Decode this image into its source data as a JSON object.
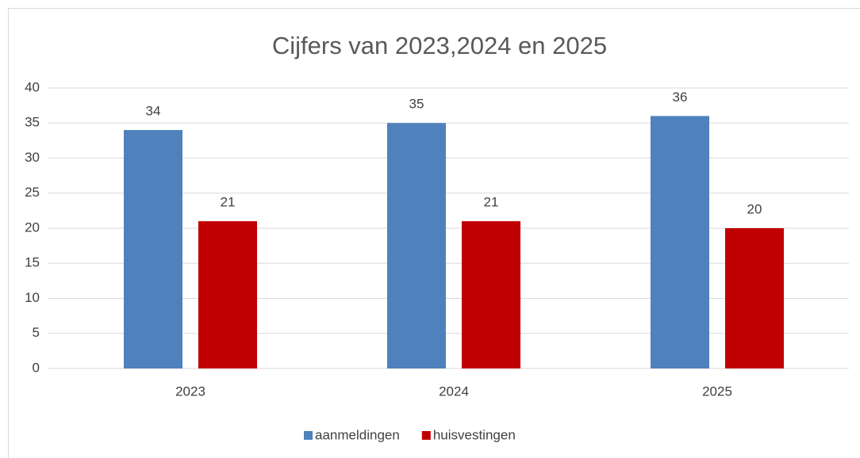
{
  "chart_data": {
    "type": "bar",
    "title": "Cijfers van 2023,2024 en 2025",
    "categories": [
      "2023",
      "2024",
      "2025"
    ],
    "series": [
      {
        "name": "aanmeldingen",
        "color": "#4f81bd",
        "values": [
          34,
          35,
          36
        ]
      },
      {
        "name": "huisvestingen",
        "color": "#c00000",
        "values": [
          21,
          21,
          20
        ]
      }
    ],
    "ylim": [
      0,
      40
    ],
    "yticks": [
      0,
      5,
      10,
      15,
      20,
      25,
      30,
      35,
      40
    ],
    "grid": true,
    "legend": "bottom",
    "data_labels": true
  }
}
